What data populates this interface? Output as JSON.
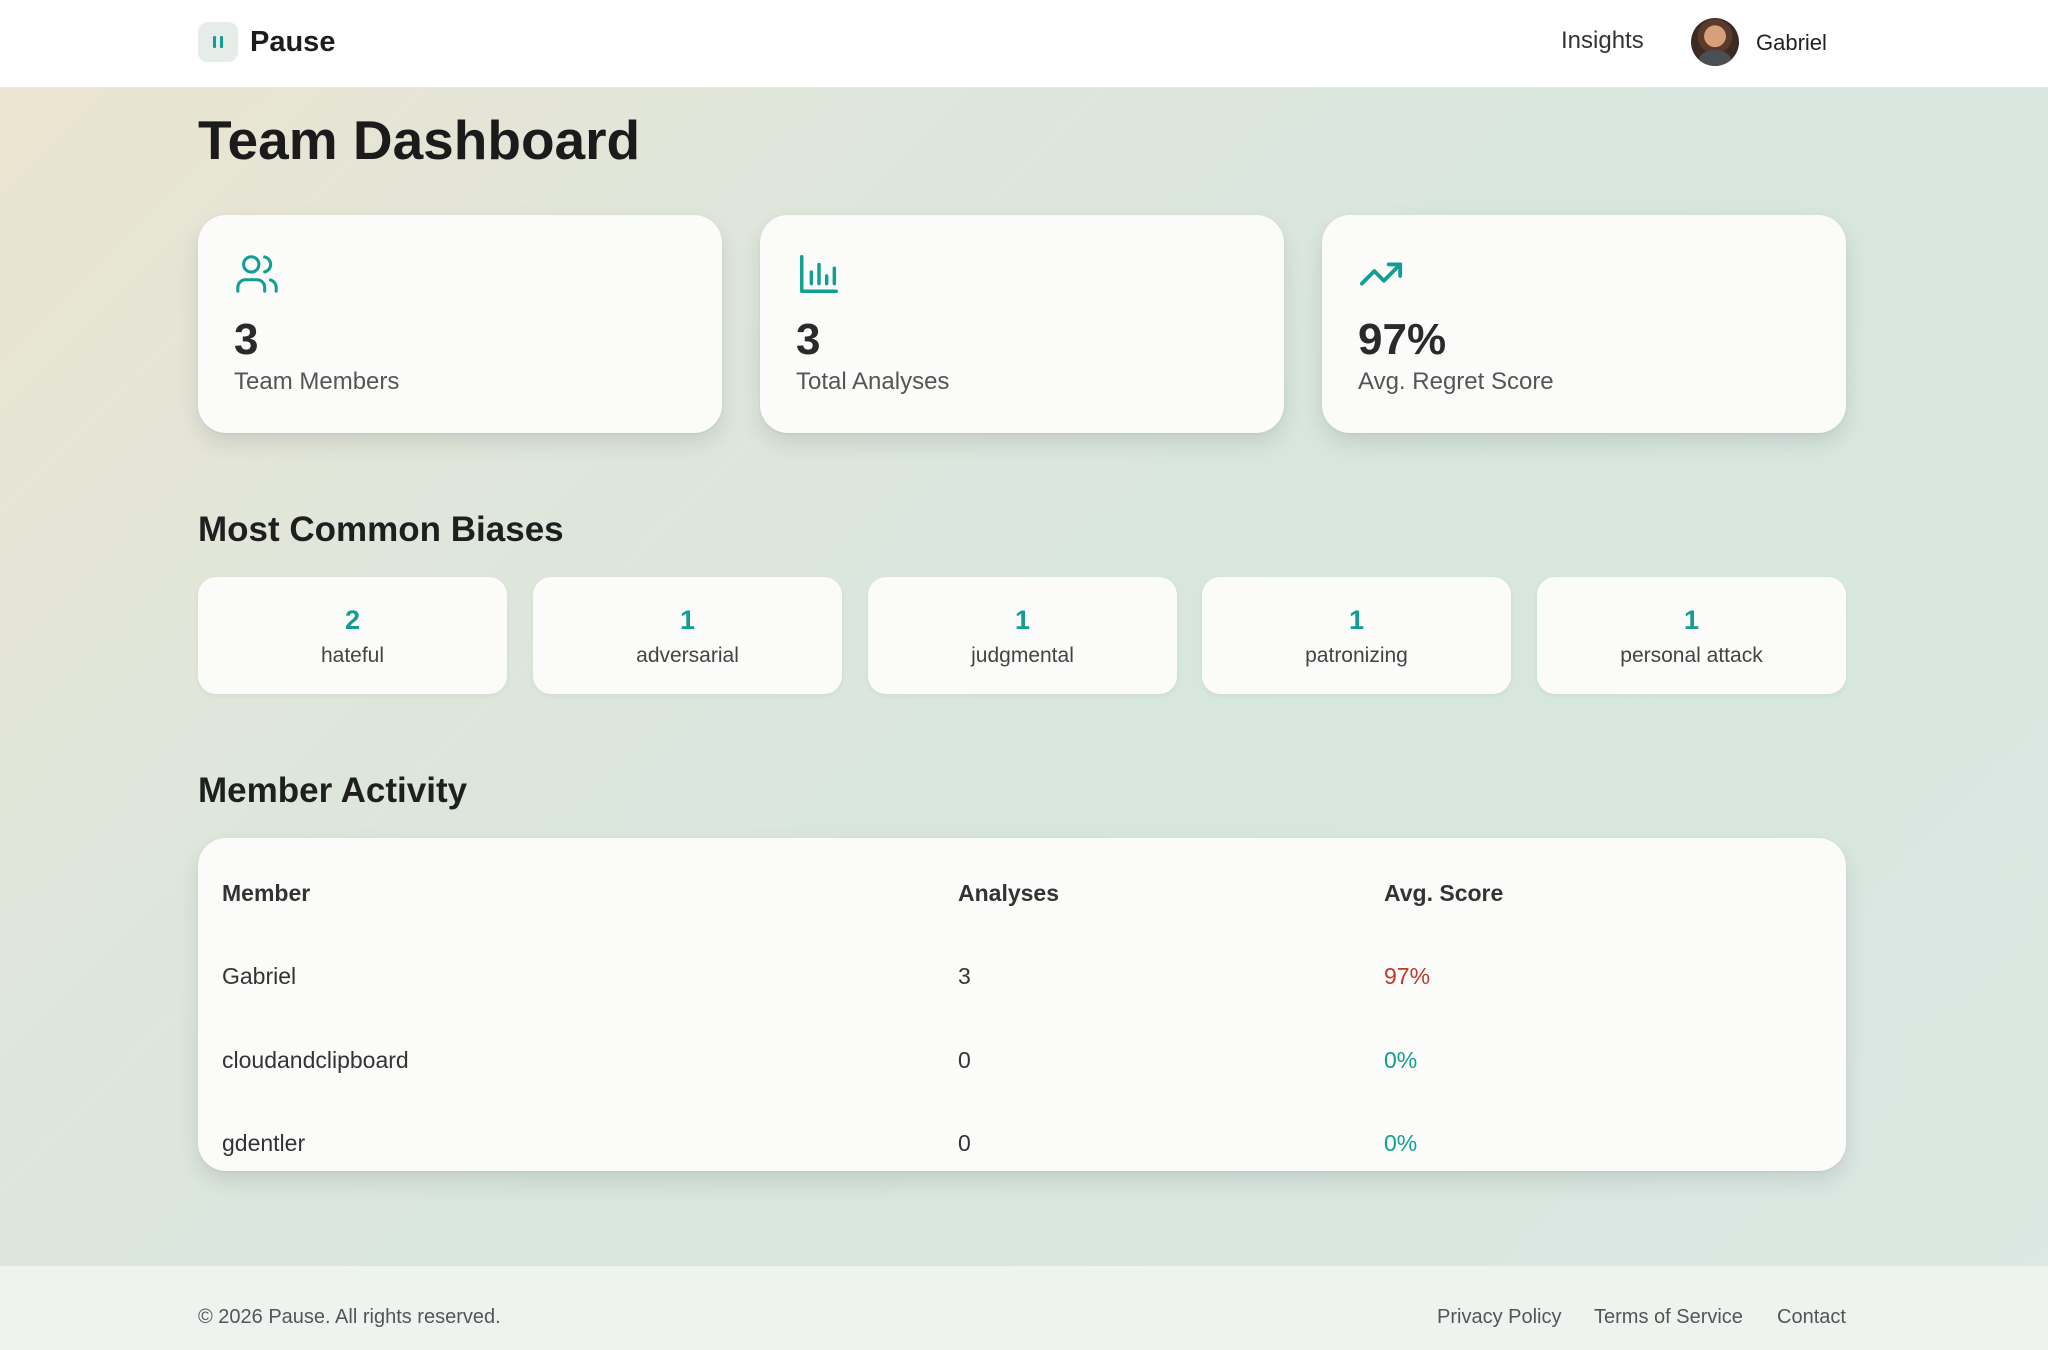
{
  "header": {
    "brand_name": "Pause",
    "nav_insights": "Insights",
    "user_name": "Gabriel"
  },
  "page_title": "Team Dashboard",
  "stats": [
    {
      "icon": "users-icon",
      "value": "3",
      "label": "Team Members"
    },
    {
      "icon": "bar-chart-icon",
      "value": "3",
      "label": "Total Analyses"
    },
    {
      "icon": "trending-up-icon",
      "value": "97%",
      "label": "Avg. Regret Score"
    }
  ],
  "biases": {
    "title": "Most Common Biases",
    "items": [
      {
        "count": "2",
        "label": "hateful"
      },
      {
        "count": "1",
        "label": "adversarial"
      },
      {
        "count": "1",
        "label": "judgmental"
      },
      {
        "count": "1",
        "label": "patronizing"
      },
      {
        "count": "1",
        "label": "personal attack"
      }
    ]
  },
  "activity": {
    "title": "Member Activity",
    "headers": [
      "Member",
      "Analyses",
      "Avg. Score"
    ],
    "rows": [
      {
        "member": "Gabriel",
        "analyses": "3",
        "score": "97%",
        "score_color": "#c0392b"
      },
      {
        "member": "cloudandclipboard",
        "analyses": "0",
        "score": "0%",
        "score_color": "#139e93"
      },
      {
        "member": "gdentler",
        "analyses": "0",
        "score": "0%",
        "score_color": "#139e93"
      }
    ]
  },
  "footer": {
    "copyright": "© 2026 Pause. All rights reserved.",
    "links": [
      "Privacy Policy",
      "Terms of Service",
      "Contact"
    ]
  },
  "colors": {
    "accent": "#139e93",
    "danger": "#c0392b"
  }
}
